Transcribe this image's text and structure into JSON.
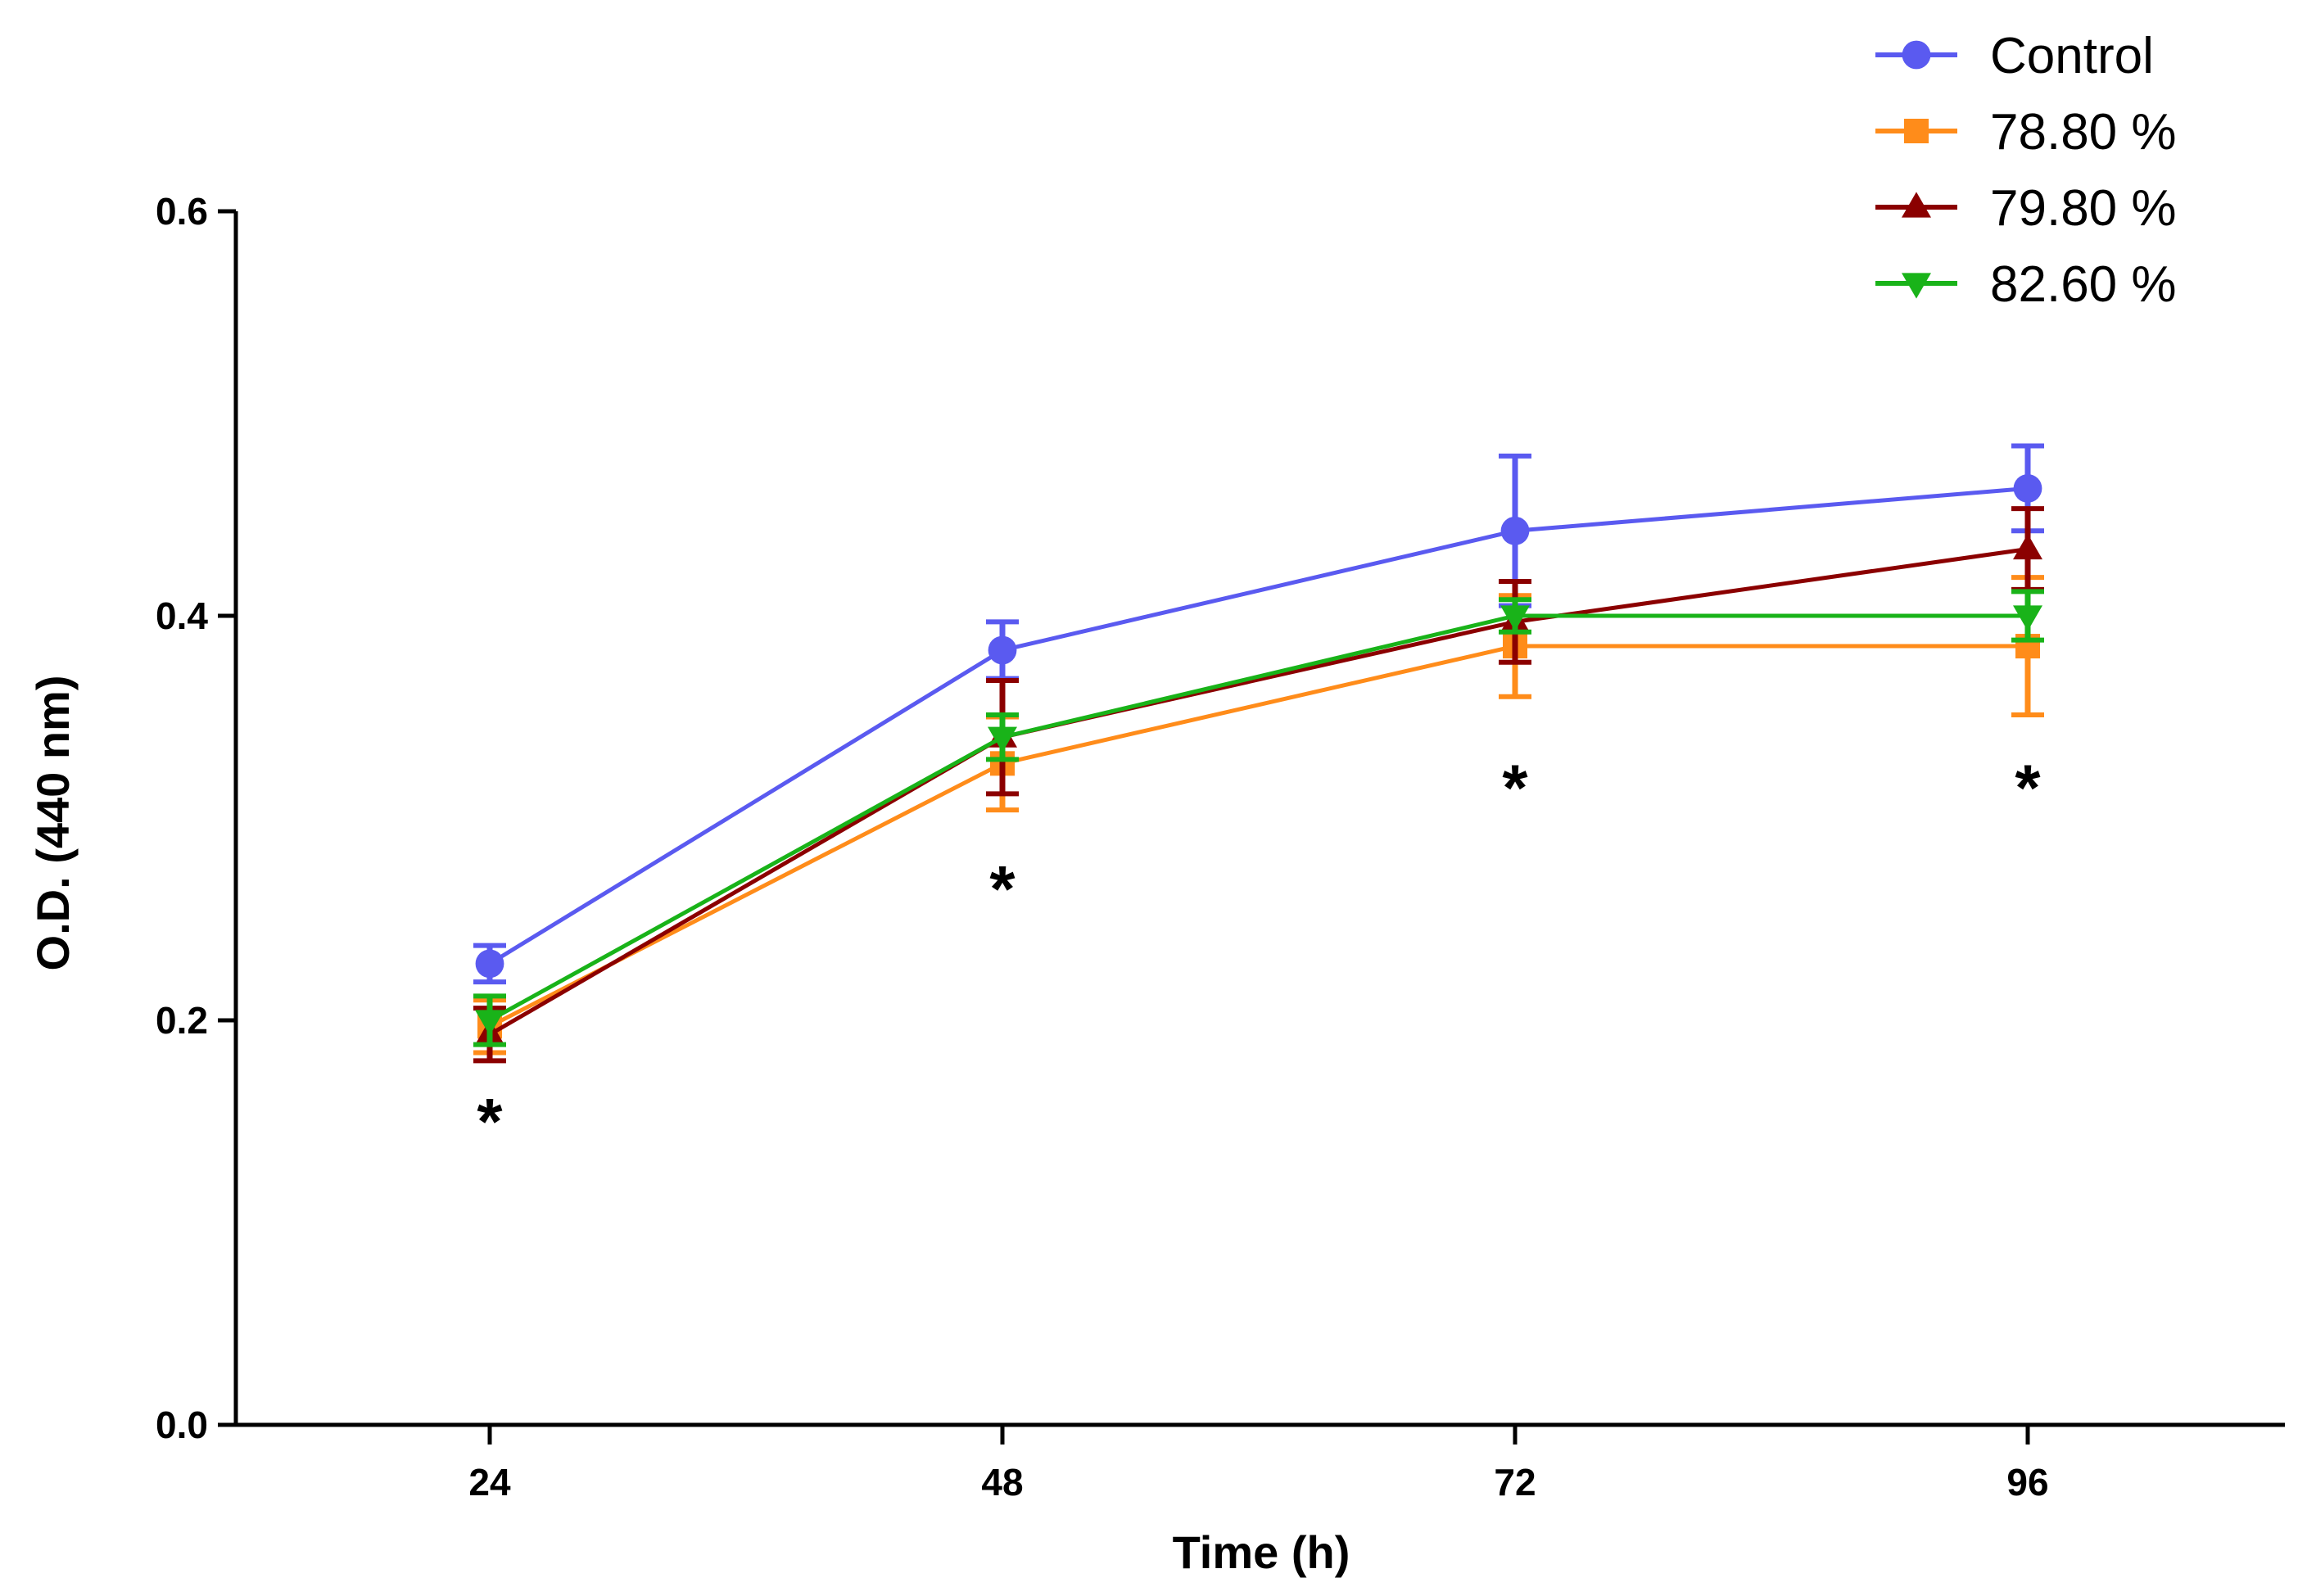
{
  "chart_data": {
    "type": "line",
    "title": "",
    "xlabel": "Time (h)",
    "ylabel": "O.D. (440 nm)",
    "x": [
      24,
      48,
      72,
      96
    ],
    "x_tick_labels": [
      "24",
      "48",
      "72",
      "96"
    ],
    "y_tick_labels": [
      "0.0",
      "0.2",
      "0.4",
      "0.6"
    ],
    "y_ticks": [
      0.0,
      0.2,
      0.4,
      0.6
    ],
    "ylim": [
      0.0,
      0.6
    ],
    "grid": false,
    "legend_position": "top-right",
    "series": [
      {
        "name": "Control",
        "color": "#5a5af0",
        "marker": "circle",
        "values": [
          0.228,
          0.383,
          0.442,
          0.463
        ],
        "errors": [
          0.009,
          0.014,
          0.037,
          0.021
        ]
      },
      {
        "name": "78.80 %",
        "color": "#ff8c1a",
        "marker": "square",
        "values": [
          0.197,
          0.327,
          0.385,
          0.385
        ],
        "errors": [
          0.013,
          0.023,
          0.025,
          0.034
        ]
      },
      {
        "name": "79.80 %",
        "color": "#8b0000",
        "marker": "triangle-up",
        "values": [
          0.193,
          0.34,
          0.397,
          0.433
        ],
        "errors": [
          0.013,
          0.028,
          0.02,
          0.02
        ]
      },
      {
        "name": "82.60 %",
        "color": "#19b319",
        "marker": "triangle-down",
        "values": [
          0.2,
          0.34,
          0.4,
          0.4
        ],
        "errors": [
          0.012,
          0.011,
          0.008,
          0.012
        ]
      }
    ],
    "annotations": [
      {
        "text": "*",
        "x": 24,
        "y": 0.155
      },
      {
        "text": "*",
        "x": 48,
        "y": 0.27
      },
      {
        "text": "*",
        "x": 72,
        "y": 0.32
      },
      {
        "text": "*",
        "x": 96,
        "y": 0.32
      }
    ]
  }
}
